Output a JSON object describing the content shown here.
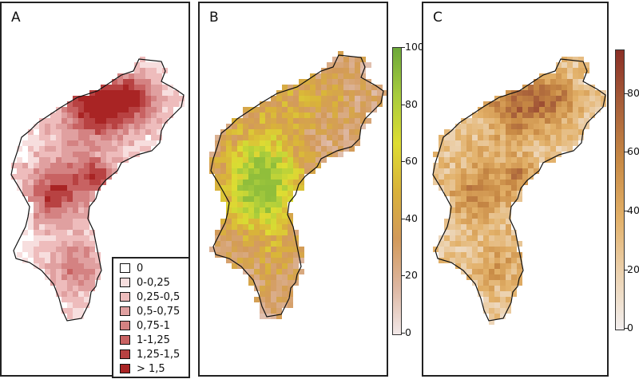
{
  "panels": [
    {
      "id": "A",
      "label": "A"
    },
    {
      "id": "B",
      "label": "B"
    },
    {
      "id": "C",
      "label": "C"
    }
  ],
  "legend_a": {
    "items": [
      {
        "label": "0",
        "color": "#ffffff"
      },
      {
        "label": "0-0,25",
        "color": "#f7dede"
      },
      {
        "label": "0,25-0,5",
        "color": "#eebcbc"
      },
      {
        "label": "0,5-0,75",
        "color": "#e0a0a0"
      },
      {
        "label": "0,75-1",
        "color": "#d48282"
      },
      {
        "label": "1-1,25",
        "color": "#c86262"
      },
      {
        "label": "1,25-1,5",
        "color": "#b84242"
      },
      {
        "label": "> 1,5",
        "color": "#a92424"
      }
    ]
  },
  "colorbar_b": {
    "min": 0,
    "max": 100,
    "ticks": [
      "100",
      "80",
      "60",
      "40",
      "20",
      "0"
    ],
    "tick_values": [
      100,
      80,
      60,
      40,
      20,
      0
    ],
    "stops": [
      "#f2e8e8",
      "#ddb6a0",
      "#d39a5a",
      "#d9b23a",
      "#dedd32",
      "#a8cc3c",
      "#6ca83a"
    ]
  },
  "colorbar_c": {
    "min": 0,
    "max": 95,
    "ticks": [
      "80",
      "60",
      "40",
      "20",
      "0"
    ],
    "tick_values": [
      80,
      60,
      40,
      20,
      0
    ],
    "stops": [
      "#f2eeee",
      "#ecd2b0",
      "#e2b068",
      "#c88a45",
      "#a8603a",
      "#8a2f26"
    ]
  }
}
